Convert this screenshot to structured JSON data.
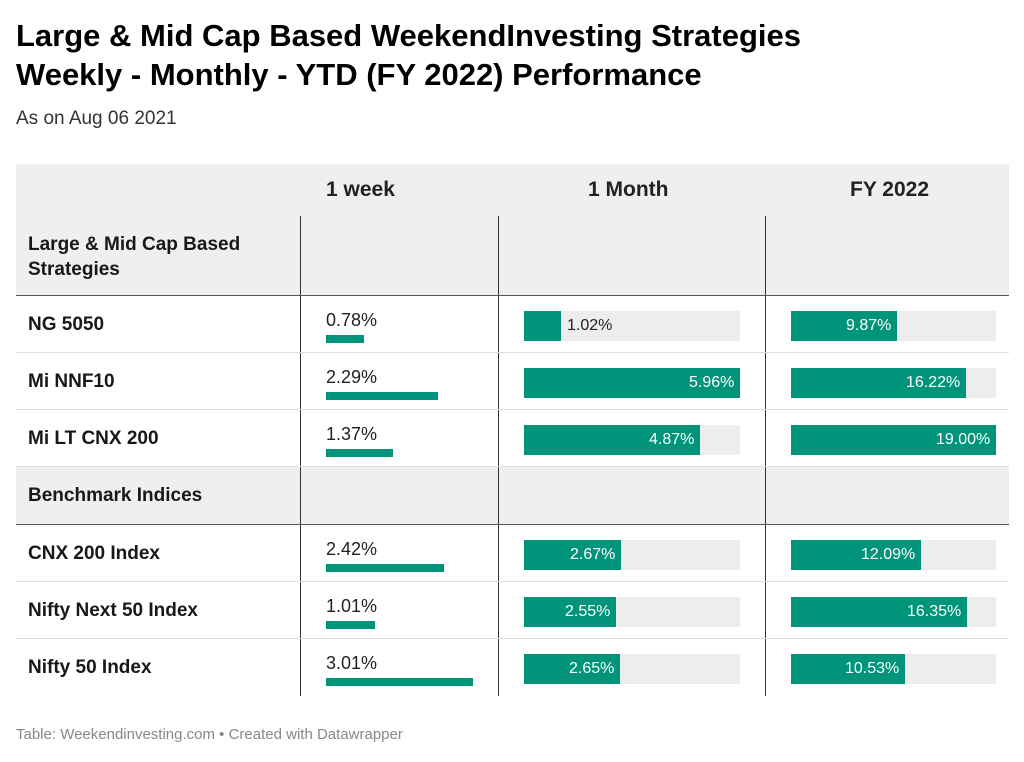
{
  "title_line1": "Large & Mid Cap Based WeekendInvesting Strategies",
  "title_line2": "Weekly - Monthly - YTD (FY 2022) Performance",
  "subtitle": "As on Aug 06 2021",
  "source": "Table: Weekendinvesting.com • Created with Datawrapper",
  "colors": {
    "bar": "#00957a",
    "track": "#ededed",
    "header_bg": "#efefef"
  },
  "chart_data": {
    "type": "table",
    "columns": [
      "1 week",
      "1 Month",
      "FY 2022"
    ],
    "scales": {
      "1 week": [
        0,
        3.01
      ],
      "1 Month": [
        0,
        5.96
      ],
      "FY 2022": [
        0,
        19.0
      ]
    },
    "groups": [
      {
        "name": "Large & Mid Cap Based Strategies",
        "rows": [
          {
            "name": "NG 5050",
            "week": 0.78,
            "week_label": "0.78%",
            "month": 1.02,
            "month_label": "1.02%",
            "fy": 9.87,
            "fy_label": "9.87%"
          },
          {
            "name": "Mi NNF10",
            "week": 2.29,
            "week_label": "2.29%",
            "month": 5.96,
            "month_label": "5.96%",
            "fy": 16.22,
            "fy_label": "16.22%"
          },
          {
            "name": "Mi LT CNX 200",
            "week": 1.37,
            "week_label": "1.37%",
            "month": 4.87,
            "month_label": "4.87%",
            "fy": 19.0,
            "fy_label": "19.00%"
          }
        ]
      },
      {
        "name": "Benchmark Indices",
        "rows": [
          {
            "name": "CNX 200 Index",
            "week": 2.42,
            "week_label": "2.42%",
            "month": 2.67,
            "month_label": "2.67%",
            "fy": 12.09,
            "fy_label": "12.09%"
          },
          {
            "name": "Nifty Next 50 Index",
            "week": 1.01,
            "week_label": "1.01%",
            "month": 2.55,
            "month_label": "2.55%",
            "fy": 16.35,
            "fy_label": "16.35%"
          },
          {
            "name": "Nifty 50 Index",
            "week": 3.01,
            "week_label": "3.01%",
            "month": 2.65,
            "month_label": "2.65%",
            "fy": 10.53,
            "fy_label": "10.53%"
          }
        ]
      }
    ]
  }
}
